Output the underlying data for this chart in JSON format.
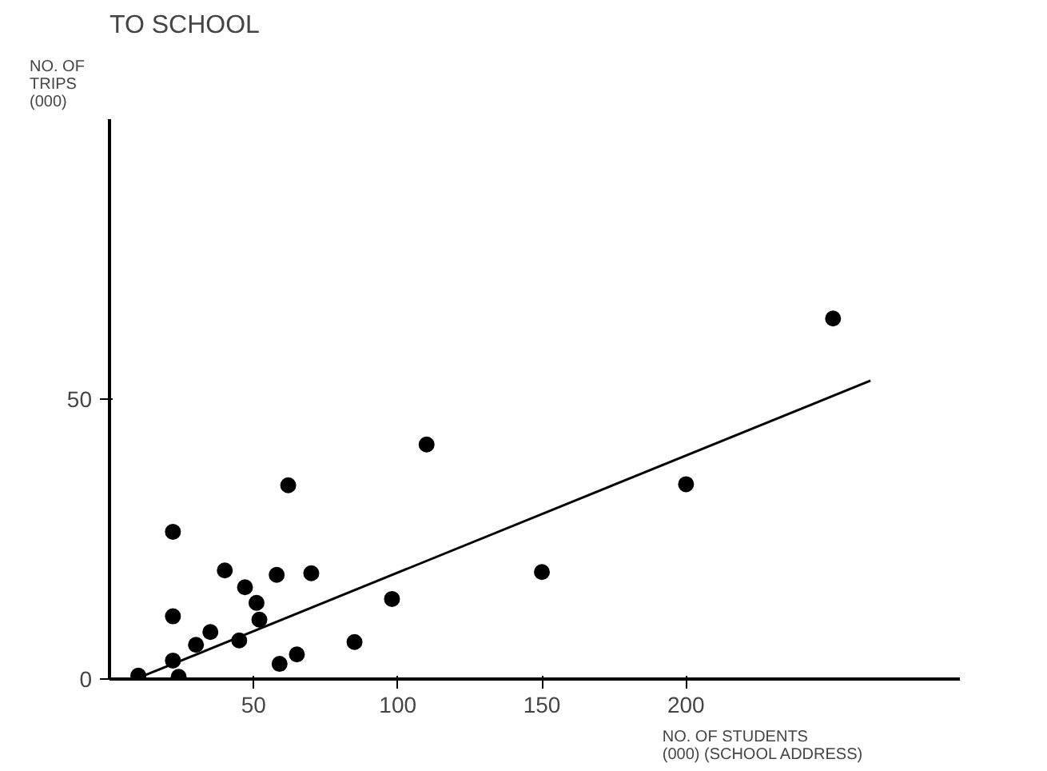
{
  "chart_data": {
    "type": "scatter",
    "title": "TO SCHOOL",
    "xlabel": "NO. OF STUDENTS\n(000) (SCHOOL ADDRESS)",
    "ylabel": "NO. OF\nTRIPS\n(000)",
    "xlim": [
      0,
      295
    ],
    "ylim": [
      0,
      100
    ],
    "xticks": [
      50,
      100,
      150,
      200
    ],
    "yticks": [
      0,
      50
    ],
    "grid": false,
    "series": [
      {
        "color": "#000000",
        "marker": "circle",
        "x": [
          10,
          22,
          22,
          22,
          24,
          30,
          35,
          40,
          45,
          47,
          51,
          52,
          58,
          59,
          62,
          65,
          70,
          85,
          98,
          110,
          150,
          200,
          251
        ],
        "values": [
          0.6,
          26.3,
          11.2,
          3.3,
          0.4,
          6.1,
          8.4,
          19.4,
          6.9,
          16.4,
          13.6,
          10.6,
          18.6,
          2.7,
          34.6,
          4.4,
          18.9,
          6.6,
          14.3,
          41.9,
          19.1,
          34.8,
          64.4
        ]
      },
      {
        "type": "line",
        "color": "#000000",
        "line_style": "solid",
        "x": [
          11,
          264
        ],
        "values": [
          0.4,
          53.3
        ]
      }
    ]
  }
}
